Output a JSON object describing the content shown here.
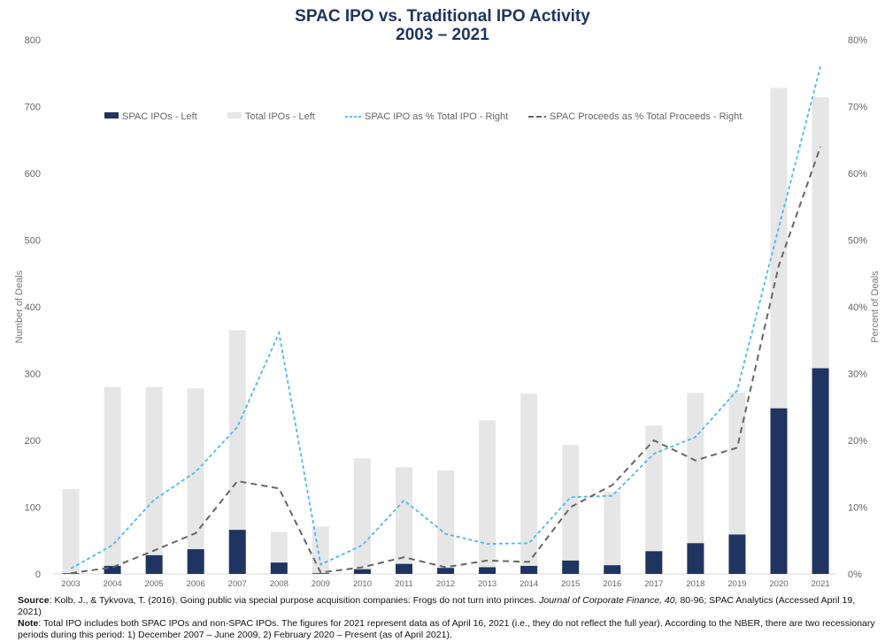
{
  "chart_data": {
    "type": "bar",
    "title": "SPAC IPO vs. Traditional IPO Activity",
    "subtitle": "2003 – 2021",
    "ylabel": "Number of Deals",
    "y2label": "Percent of Deals",
    "ylim": [
      0,
      800
    ],
    "y2lim": [
      0,
      80
    ],
    "yticks": [
      "0",
      "100",
      "200",
      "300",
      "400",
      "500",
      "600",
      "700",
      "800"
    ],
    "y2ticks": [
      "0%",
      "10%",
      "20%",
      "30%",
      "40%",
      "50%",
      "60%",
      "70%",
      "80%"
    ],
    "categories": [
      "2003",
      "2004",
      "2005",
      "2006",
      "2007",
      "2008",
      "2009",
      "2010",
      "2011",
      "2012",
      "2013",
      "2014",
      "2015",
      "2016",
      "2017",
      "2018",
      "2019",
      "2020",
      "2021"
    ],
    "legend_placement": "top",
    "grid": false,
    "series": [
      {
        "name": "SPAC IPOs - Left",
        "type": "bar",
        "axis": "left",
        "color": "#1f3461",
        "values": [
          1,
          12,
          28,
          37,
          66,
          17,
          1,
          7,
          15,
          9,
          10,
          12,
          20,
          13,
          34,
          46,
          59,
          248,
          308
        ]
      },
      {
        "name": "Total IPOs - Left",
        "type": "bar",
        "axis": "left",
        "color": "#e6e6e6",
        "values": [
          127,
          280,
          280,
          278,
          365,
          63,
          71,
          173,
          160,
          155,
          230,
          270,
          193,
          123,
          222,
          271,
          272,
          728,
          714
        ]
      },
      {
        "name": "SPAC IPO as % Total IPO - Right",
        "type": "line",
        "axis": "right",
        "color": "#4db8f0",
        "dash": "short",
        "values": [
          0.8,
          4.3,
          11.1,
          15.3,
          22,
          36.1,
          1.4,
          4.3,
          11,
          6,
          4.5,
          4.6,
          11.5,
          11.7,
          18,
          20.5,
          27.5,
          51.9,
          76
        ]
      },
      {
        "name": "SPAC Proceeds as % Total Proceeds - Right",
        "type": "line",
        "axis": "right",
        "color": "#666666",
        "dash": "long",
        "values": [
          0.1,
          1,
          3.5,
          6.1,
          13.9,
          12.8,
          0.2,
          1,
          2.5,
          1,
          2,
          1.8,
          10,
          13.3,
          20,
          17,
          18.9,
          46.2,
          64
        ]
      }
    ]
  },
  "footer": {
    "source_label": "Source",
    "source_text": ": Kolb, J., & Tykvova,  T. (2016). Going public via special purpose acquisition companies: Frogs do not turn into princes. ",
    "source_journal": "Journal of Corporate Finance, 40,",
    "source_rest": " 80-96; SPAC Analytics (Accessed April 19, 2021)",
    "note_label": "Note",
    "note_text": ": Total IPO includes both SPAC IPOs and non-SPAC IPOs. The figures for 2021 represent data as of April 16, 2021 (i.e., they do not reflect the full year). According to the NBER, there are two recessionary periods during this period: 1) December 2007 – June 2009, 2) February 2020 –  Present (as of April  2021)."
  }
}
